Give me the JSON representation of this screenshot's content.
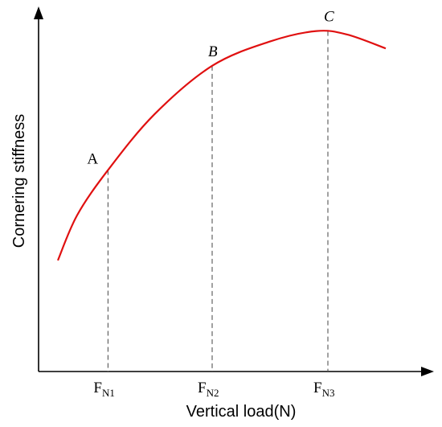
{
  "chart_data": {
    "type": "line",
    "xlabel": "Vertical load(N)",
    "ylabel": "Cornering stiffness",
    "grid": false,
    "series": [
      {
        "color": "#e01010",
        "x": [
          0.05,
          0.1,
          0.18,
          0.3,
          0.45,
          0.6,
          0.72,
          0.8,
          0.9
        ],
        "y": [
          0.32,
          0.45,
          0.58,
          0.74,
          0.88,
          0.95,
          0.98,
          0.97,
          0.93
        ]
      }
    ],
    "points": [
      {
        "label": "A",
        "italic": false,
        "x": 0.18,
        "y": 0.58,
        "tick_main": "F",
        "tick_sub": "N1"
      },
      {
        "label": "B",
        "italic": true,
        "x": 0.45,
        "y": 0.88,
        "tick_main": "F",
        "tick_sub": "N2"
      },
      {
        "label": "C",
        "italic": true,
        "x": 0.75,
        "y": 0.98,
        "tick_main": "F",
        "tick_sub": "N3"
      }
    ]
  }
}
